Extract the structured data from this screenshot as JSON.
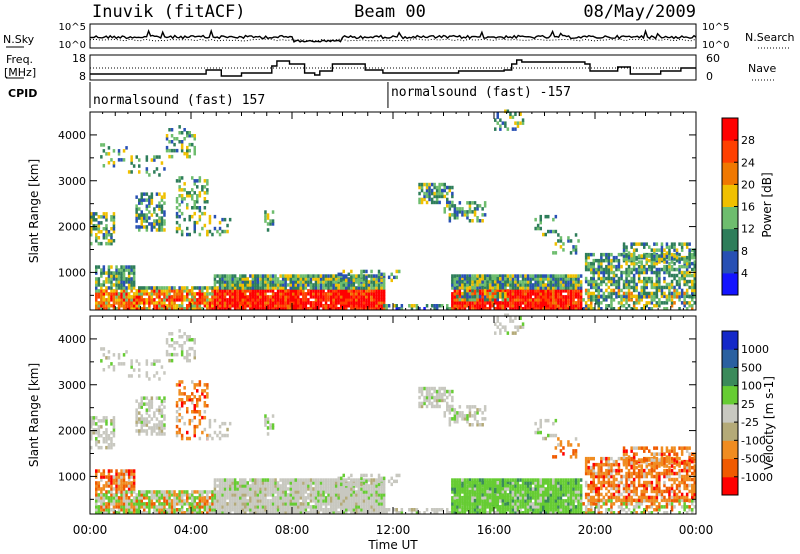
{
  "header": {
    "station": "Inuvik (fitACF)",
    "beam": "Beam 00",
    "date": "08/May/2009"
  },
  "noise_panel": {
    "left_label": "N.Sky",
    "left_ticks": [
      "10^5",
      "10^0"
    ],
    "right_label": "N.Search",
    "right_ticks": [
      "10^5",
      "10^0"
    ]
  },
  "freq_panel": {
    "left_label_line1": "Freq.",
    "left_label_line2": "[MHz]",
    "left_ticks": [
      "18",
      "8"
    ],
    "right_label": "Nave",
    "right_ticks": [
      "60",
      "0"
    ]
  },
  "cpid_panel": {
    "label": "CPID",
    "segments": [
      {
        "name": "normalsound (fast) 157",
        "start_hour": 0
      },
      {
        "name": "normalsound (fast) -157",
        "start_hour": 11.8
      }
    ]
  },
  "chart_data": [
    {
      "type": "heatmap",
      "quantity": "power",
      "ylabel": "Slant Range [km]",
      "yticks": [
        1000,
        2000,
        3000,
        4000
      ],
      "ylim": [
        180,
        4500
      ],
      "xlim": [
        0,
        24
      ],
      "colorbar": {
        "label": "Power [dB]",
        "ticks": [
          "4",
          "8",
          "12",
          "16",
          "20",
          "24",
          "28"
        ],
        "colors": [
          "#1414ff",
          "#2850b4",
          "#2e7d5a",
          "#6ebd6e",
          "#f0c000",
          "#f07800",
          "#ff4000",
          "#ff0000"
        ]
      }
    },
    {
      "type": "heatmap",
      "quantity": "velocity",
      "ylabel": "Slant Range [km]",
      "yticks": [
        1000,
        2000,
        3000,
        4000
      ],
      "ylim": [
        180,
        4500
      ],
      "xlim": [
        0,
        24
      ],
      "xlabel": "Time UT",
      "xticks": [
        "00:00",
        "04:00",
        "08:00",
        "12:00",
        "16:00",
        "20:00",
        "00:00"
      ],
      "colorbar": {
        "label": "Velocity [m s-1]",
        "ticks": [
          "1000",
          "500",
          "100",
          "25",
          "-25",
          "-100",
          "-500",
          "-1000"
        ],
        "colors": [
          "#1428c8",
          "#2a60a0",
          "#3a8a5a",
          "#66cc33",
          "#c8c8c0",
          "#b4aa78",
          "#f08c20",
          "#f05a00",
          "#ff0000"
        ]
      }
    }
  ]
}
